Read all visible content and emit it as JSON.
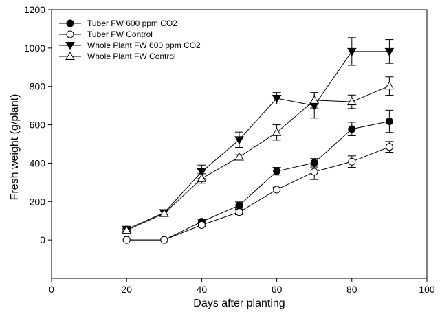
{
  "chart_data": {
    "type": "line",
    "title": "",
    "xlabel": "Days after planting",
    "ylabel": "Fresh weight (g/plant)",
    "xlim": [
      0,
      100
    ],
    "ylim": [
      -200,
      1200
    ],
    "x_ticks": [
      0,
      20,
      40,
      60,
      80,
      100
    ],
    "y_ticks": [
      0,
      200,
      400,
      600,
      800,
      1000,
      1200
    ],
    "x_tick_labels": [
      "0",
      "20",
      "40",
      "60",
      "80",
      "100"
    ],
    "y_tick_labels": [
      "0",
      "200",
      "400",
      "600",
      "800",
      "1000",
      "1200"
    ],
    "grid": false,
    "legend_position": "top-left",
    "x": [
      20,
      30,
      40,
      50,
      60,
      70,
      80,
      90
    ],
    "series": [
      {
        "name": "Tuber FW 600 ppm CO2",
        "marker": "filled-circle",
        "values": [
          0,
          0,
          95,
          180,
          358,
          402,
          578,
          618
        ],
        "errors": [
          0,
          0,
          10,
          18,
          20,
          22,
          35,
          58
        ]
      },
      {
        "name": "Tuber FW Control",
        "marker": "open-circle",
        "values": [
          0,
          0,
          78,
          145,
          262,
          355,
          408,
          485
        ],
        "errors": [
          0,
          0,
          8,
          14,
          12,
          40,
          30,
          28
        ]
      },
      {
        "name": "Whole Plant FW 600 ppm CO2",
        "marker": "filled-triangle-down",
        "values": [
          55,
          142,
          355,
          522,
          738,
          700,
          982,
          982
        ],
        "errors": [
          5,
          10,
          35,
          40,
          30,
          65,
          72,
          62
        ]
      },
      {
        "name": "Whole Plant FW Control",
        "marker": "open-triangle-up",
        "values": [
          50,
          138,
          320,
          432,
          560,
          728,
          720,
          802
        ],
        "errors": [
          5,
          8,
          25,
          12,
          40,
          40,
          35,
          48
        ]
      }
    ]
  }
}
